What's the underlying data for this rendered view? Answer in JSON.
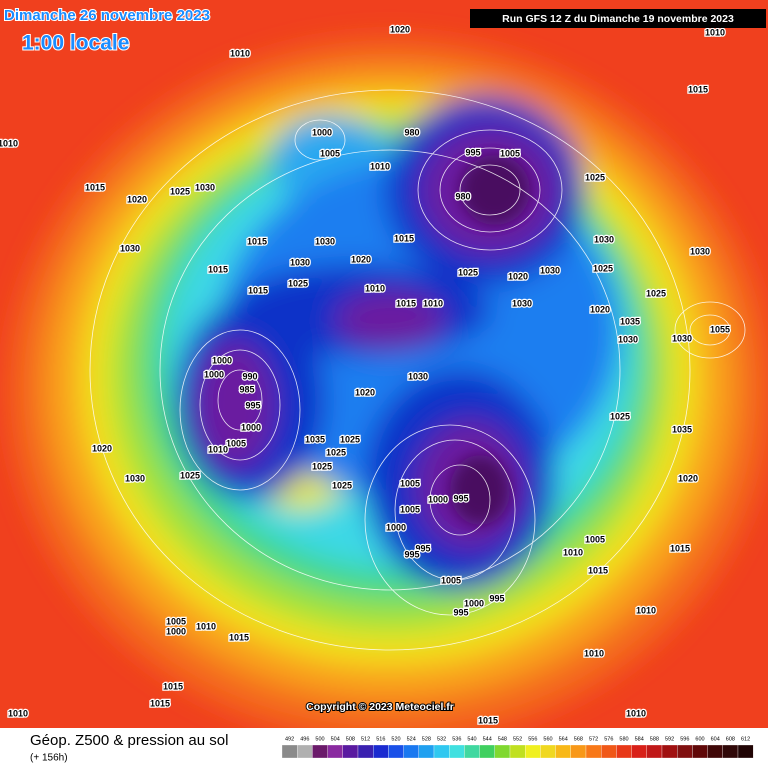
{
  "header": {
    "date": "Dimanche 26 novembre 2023",
    "time": "1:00 locale",
    "run": "Run GFS 12 Z du Dimanche 19 novembre 2023"
  },
  "footer": {
    "title": "Géop. Z500 & pression au sol",
    "subtitle": "(+ 156h)",
    "copyright": "Copyright © 2023 Meteociel.fr"
  },
  "scale": [
    492,
    496,
    500,
    504,
    508,
    512,
    516,
    520,
    524,
    528,
    532,
    536,
    540,
    544,
    548,
    552,
    556,
    560,
    564,
    568,
    572,
    576,
    580,
    584,
    588,
    592,
    596,
    600,
    604,
    608,
    612
  ],
  "pressure_labels": [
    "1020",
    "1010",
    "1010",
    "1015",
    "1010",
    "1000",
    "1005",
    "980",
    "995",
    "1005",
    "1010",
    "1025",
    "1015",
    "1025",
    "1030",
    "1020",
    "980",
    "1030",
    "1015",
    "1015",
    "1030",
    "1030",
    "1020",
    "1030",
    "1025",
    "1020",
    "1030",
    "1025",
    "1030",
    "1015",
    "1025",
    "1010",
    "1015",
    "1025",
    "1015",
    "1010",
    "1030",
    "1020",
    "1035",
    "1055",
    "1030",
    "1030",
    "1000",
    "1000",
    "990",
    "985",
    "1030",
    "995",
    "1020",
    "1000",
    "1025",
    "1035",
    "1005",
    "1010",
    "1035",
    "1025",
    "1020",
    "1025",
    "1025",
    "1030",
    "1025",
    "1020",
    "1025",
    "1005",
    "1000",
    "995",
    "1005",
    "1000",
    "995",
    "995",
    "1005",
    "1015",
    "1010",
    "1015",
    "1005",
    "1000",
    "995",
    "995",
    "1005",
    "1000",
    "1010",
    "1015",
    "1010",
    "1010",
    "1015",
    "1015",
    "1010",
    "1015",
    "1010"
  ]
}
